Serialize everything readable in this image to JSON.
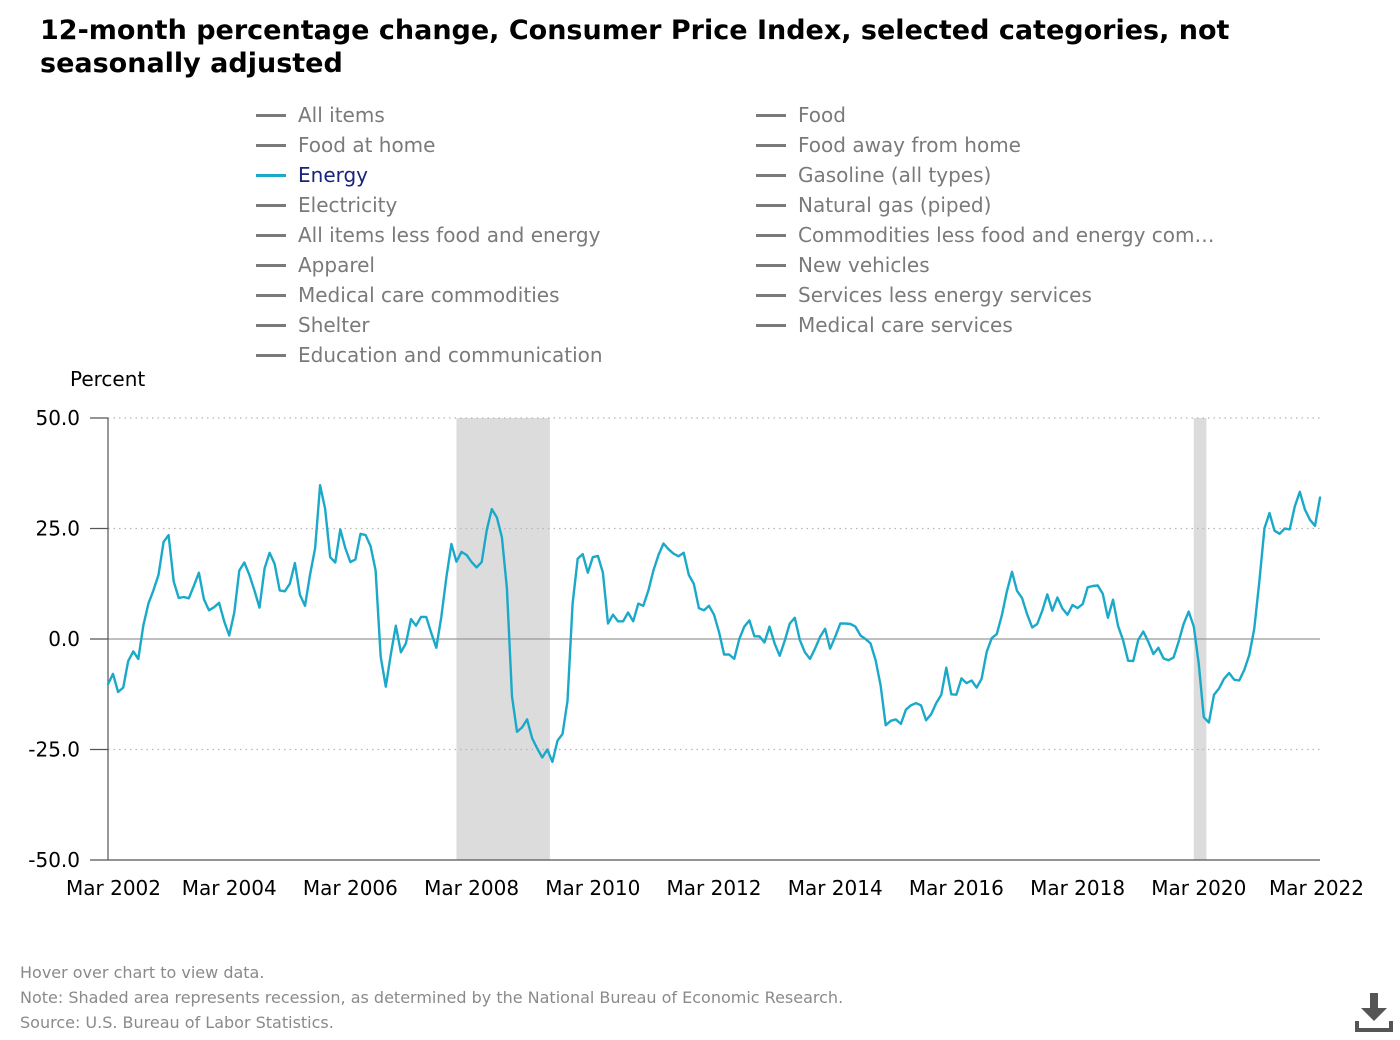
{
  "title": "12-month percentage change, Consumer Price Index, selected categories, not seasonally adjusted",
  "legend": [
    {
      "label": "All items",
      "active": false
    },
    {
      "label": "Food",
      "active": false
    },
    {
      "label": "Food at home",
      "active": false
    },
    {
      "label": "Food away from home",
      "active": false
    },
    {
      "label": "Energy",
      "active": true
    },
    {
      "label": "Gasoline (all types)",
      "active": false
    },
    {
      "label": "Electricity",
      "active": false
    },
    {
      "label": "Natural gas (piped)",
      "active": false
    },
    {
      "label": "All items less food and energy",
      "active": false
    },
    {
      "label": "Commodities less food and energy com…",
      "active": false
    },
    {
      "label": "Apparel",
      "active": false
    },
    {
      "label": "New vehicles",
      "active": false
    },
    {
      "label": "Medical care commodities",
      "active": false
    },
    {
      "label": "Services less energy services",
      "active": false
    },
    {
      "label": "Shelter",
      "active": false
    },
    {
      "label": "Medical care services",
      "active": false
    },
    {
      "label": "Education and communication",
      "active": false
    }
  ],
  "notes": {
    "hover": "Hover over chart to view data.",
    "note": "Note: Shaded area represents recession, as determined by the National Bureau of Economic Research.",
    "source": "Source: U.S. Bureau of Labor Statistics."
  },
  "colors": {
    "energy": "#1ba9c9",
    "recession": "#dcdcdc",
    "inactive": "#7a7a7a"
  },
  "icons": {
    "download": "download-icon"
  },
  "chart_data": {
    "type": "line",
    "ylabel": "Percent",
    "ylim": [
      -50,
      50
    ],
    "yticks": [
      "50.0",
      "25.0",
      "0.0",
      "-25.0",
      "-50.0"
    ],
    "ytick_values": [
      50,
      25,
      0,
      -25,
      -50
    ],
    "xlim": [
      "2002-03",
      "2022-03"
    ],
    "xticks": [
      "Mar 2002",
      "Mar 2004",
      "Mar 2006",
      "Mar 2008",
      "Mar 2010",
      "Mar 2012",
      "Mar 2014",
      "Mar 2016",
      "Mar 2018",
      "Mar 2020",
      "Mar 2022"
    ],
    "grid": "horizontal dotted",
    "recessions": [
      {
        "start": "2007-12",
        "end": "2009-06"
      },
      {
        "start": "2020-02",
        "end": "2020-04"
      }
    ],
    "series": [
      {
        "name": "Energy",
        "anchors": [
          [
            "2002-03",
            -10.2
          ],
          [
            "2002-04",
            -7.9
          ],
          [
            "2002-05",
            -12
          ],
          [
            "2002-06",
            -11
          ],
          [
            "2002-07",
            -5
          ],
          [
            "2002-08",
            -2.8
          ],
          [
            "2002-09",
            -4.5
          ],
          [
            "2002-10",
            3
          ],
          [
            "2002-11",
            8
          ],
          [
            "2002-12",
            11
          ],
          [
            "2003-01",
            14.5
          ],
          [
            "2003-02",
            22
          ],
          [
            "2003-03",
            23.5
          ],
          [
            "2003-04",
            13
          ],
          [
            "2003-05",
            9.3
          ],
          [
            "2003-06",
            9.5
          ],
          [
            "2003-07",
            9.2
          ],
          [
            "2003-08",
            12
          ],
          [
            "2003-09",
            15
          ],
          [
            "2003-10",
            9
          ],
          [
            "2003-11",
            6.5
          ],
          [
            "2003-12",
            7.2
          ],
          [
            "2004-01",
            8.2
          ],
          [
            "2004-02",
            4
          ],
          [
            "2004-03",
            0.8
          ],
          [
            "2004-04",
            6
          ],
          [
            "2004-05",
            15.5
          ],
          [
            "2004-06",
            17.3
          ],
          [
            "2004-07",
            14.5
          ],
          [
            "2004-08",
            11
          ],
          [
            "2004-09",
            7.1
          ],
          [
            "2004-10",
            16
          ],
          [
            "2004-11",
            19.5
          ],
          [
            "2004-12",
            17
          ],
          [
            "2005-01",
            11
          ],
          [
            "2005-02",
            10.8
          ],
          [
            "2005-03",
            12.5
          ],
          [
            "2005-04",
            17.2
          ],
          [
            "2005-05",
            10
          ],
          [
            "2005-06",
            7.5
          ],
          [
            "2005-07",
            14.5
          ],
          [
            "2005-08",
            20.5
          ],
          [
            "2005-09",
            34.8
          ],
          [
            "2005-10",
            29.5
          ],
          [
            "2005-11",
            18.5
          ],
          [
            "2005-12",
            17.3
          ],
          [
            "2006-01",
            24.8
          ],
          [
            "2006-02",
            20.5
          ],
          [
            "2006-03",
            17.4
          ],
          [
            "2006-04",
            18
          ],
          [
            "2006-05",
            23.8
          ],
          [
            "2006-06",
            23.5
          ],
          [
            "2006-07",
            21
          ],
          [
            "2006-08",
            15.5
          ],
          [
            "2006-09",
            -4
          ],
          [
            "2006-10",
            -10.8
          ],
          [
            "2006-11",
            -3.5
          ],
          [
            "2006-12",
            3
          ],
          [
            "2007-01",
            -3
          ],
          [
            "2007-02",
            -1
          ],
          [
            "2007-03",
            4.5
          ],
          [
            "2007-04",
            3
          ],
          [
            "2007-05",
            5
          ],
          [
            "2007-06",
            5
          ],
          [
            "2007-07",
            1.4
          ],
          [
            "2007-08",
            -2
          ],
          [
            "2007-09",
            5
          ],
          [
            "2007-10",
            14
          ],
          [
            "2007-11",
            21.5
          ],
          [
            "2007-12",
            17.5
          ],
          [
            "2008-01",
            19.7
          ],
          [
            "2008-02",
            19
          ],
          [
            "2008-03",
            17.4
          ],
          [
            "2008-04",
            16.2
          ],
          [
            "2008-05",
            17.4
          ],
          [
            "2008-06",
            24.7
          ],
          [
            "2008-07",
            29.4
          ],
          [
            "2008-08",
            27.5
          ],
          [
            "2008-09",
            23
          ],
          [
            "2008-10",
            11.5
          ],
          [
            "2008-11",
            -13
          ],
          [
            "2008-12",
            -21
          ],
          [
            "2009-01",
            -20
          ],
          [
            "2009-02",
            -18.2
          ],
          [
            "2009-03",
            -22.5
          ],
          [
            "2009-04",
            -24.8
          ],
          [
            "2009-05",
            -26.8
          ],
          [
            "2009-06",
            -25
          ],
          [
            "2009-07",
            -27.8
          ],
          [
            "2009-08",
            -23
          ],
          [
            "2009-09",
            -21.5
          ],
          [
            "2009-10",
            -14
          ],
          [
            "2009-11",
            8
          ],
          [
            "2009-12",
            18.2
          ],
          [
            "2010-01",
            19.2
          ],
          [
            "2010-02",
            15
          ],
          [
            "2010-03",
            18.5
          ],
          [
            "2010-04",
            18.8
          ],
          [
            "2010-05",
            15
          ],
          [
            "2010-06",
            3.5
          ],
          [
            "2010-07",
            5.5
          ],
          [
            "2010-08",
            4
          ],
          [
            "2010-09",
            4
          ],
          [
            "2010-10",
            6
          ],
          [
            "2010-11",
            4
          ],
          [
            "2010-12",
            8
          ],
          [
            "2011-01",
            7.5
          ],
          [
            "2011-02",
            11
          ],
          [
            "2011-03",
            15.5
          ],
          [
            "2011-04",
            19
          ],
          [
            "2011-05",
            21.6
          ],
          [
            "2011-06",
            20.3
          ],
          [
            "2011-07",
            19.3
          ],
          [
            "2011-08",
            18.7
          ],
          [
            "2011-09",
            19.5
          ],
          [
            "2011-10",
            14.5
          ],
          [
            "2011-11",
            12.5
          ],
          [
            "2011-12",
            7
          ],
          [
            "2012-01",
            6.5
          ],
          [
            "2012-02",
            7.5
          ],
          [
            "2012-03",
            5.5
          ],
          [
            "2012-04",
            1.6
          ],
          [
            "2012-05",
            -3.5
          ],
          [
            "2012-06",
            -3.5
          ],
          [
            "2012-07",
            -4.5
          ],
          [
            "2012-08",
            0
          ],
          [
            "2012-09",
            2.8
          ],
          [
            "2012-10",
            4.2
          ],
          [
            "2012-11",
            0.6
          ],
          [
            "2012-12",
            0.6
          ],
          [
            "2013-01",
            -0.8
          ],
          [
            "2013-02",
            2.8
          ],
          [
            "2013-03",
            -1
          ],
          [
            "2013-04",
            -3.8
          ],
          [
            "2013-05",
            -0.4
          ],
          [
            "2013-06",
            3.5
          ],
          [
            "2013-07",
            4.8
          ],
          [
            "2013-08",
            -0.2
          ],
          [
            "2013-09",
            -3
          ],
          [
            "2013-10",
            -4.5
          ],
          [
            "2013-11",
            -2.2
          ],
          [
            "2013-12",
            0.5
          ],
          [
            "2014-01",
            2.3
          ],
          [
            "2014-02",
            -2.2
          ],
          [
            "2014-03",
            0.5
          ],
          [
            "2014-04",
            3.5
          ],
          [
            "2014-05",
            3.5
          ],
          [
            "2014-06",
            3.4
          ],
          [
            "2014-07",
            2.8
          ],
          [
            "2014-08",
            0.8
          ],
          [
            "2014-09",
            0
          ],
          [
            "2014-10",
            -1
          ],
          [
            "2014-11",
            -4.8
          ],
          [
            "2014-12",
            -10.5
          ],
          [
            "2015-01",
            -19.5
          ],
          [
            "2015-02",
            -18.5
          ],
          [
            "2015-03",
            -18.2
          ],
          [
            "2015-04",
            -19.2
          ],
          [
            "2015-05",
            -16
          ],
          [
            "2015-06",
            -15
          ],
          [
            "2015-07",
            -14.5
          ],
          [
            "2015-08",
            -15
          ],
          [
            "2015-09",
            -18.4
          ],
          [
            "2015-10",
            -17
          ],
          [
            "2015-11",
            -14.5
          ],
          [
            "2015-12",
            -12.6
          ],
          [
            "2016-01",
            -6.5
          ],
          [
            "2016-02",
            -12.5
          ],
          [
            "2016-03",
            -12.6
          ],
          [
            "2016-04",
            -8.9
          ],
          [
            "2016-05",
            -10
          ],
          [
            "2016-06",
            -9.4
          ],
          [
            "2016-07",
            -11
          ],
          [
            "2016-08",
            -9
          ],
          [
            "2016-09",
            -2.9
          ],
          [
            "2016-10",
            0.2
          ],
          [
            "2016-11",
            1.1
          ],
          [
            "2016-12",
            5.4
          ],
          [
            "2017-01",
            10.8
          ],
          [
            "2017-02",
            15.2
          ],
          [
            "2017-03",
            10.9
          ],
          [
            "2017-04",
            9.3
          ],
          [
            "2017-05",
            5.6
          ],
          [
            "2017-06",
            2.6
          ],
          [
            "2017-07",
            3.4
          ],
          [
            "2017-08",
            6.4
          ],
          [
            "2017-09",
            10.1
          ],
          [
            "2017-10",
            6.4
          ],
          [
            "2017-11",
            9.4
          ],
          [
            "2017-12",
            6.9
          ],
          [
            "2018-01",
            5.5
          ],
          [
            "2018-02",
            7.7
          ],
          [
            "2018-03",
            7
          ],
          [
            "2018-04",
            7.9
          ],
          [
            "2018-05",
            11.7
          ],
          [
            "2018-06",
            12
          ],
          [
            "2018-07",
            12.1
          ],
          [
            "2018-08",
            10.2
          ],
          [
            "2018-09",
            4.8
          ],
          [
            "2018-10",
            8.9
          ],
          [
            "2018-11",
            3
          ],
          [
            "2018-12",
            -0.3
          ],
          [
            "2019-01",
            -4.9
          ],
          [
            "2019-02",
            -5
          ],
          [
            "2019-03",
            -0.2
          ],
          [
            "2019-04",
            1.7
          ],
          [
            "2019-05",
            -0.6
          ],
          [
            "2019-06",
            -3.4
          ],
          [
            "2019-07",
            -2
          ],
          [
            "2019-08",
            -4.4
          ],
          [
            "2019-09",
            -4.8
          ],
          [
            "2019-10",
            -4.2
          ],
          [
            "2019-11",
            -0.6
          ],
          [
            "2019-12",
            3.4
          ],
          [
            "2020-01",
            6.2
          ],
          [
            "2020-02",
            2.8
          ],
          [
            "2020-03",
            -5.7
          ],
          [
            "2020-04",
            -17.7
          ],
          [
            "2020-05",
            -18.9
          ],
          [
            "2020-06",
            -12.6
          ],
          [
            "2020-07",
            -11.2
          ],
          [
            "2020-08",
            -9
          ],
          [
            "2020-09",
            -7.7
          ],
          [
            "2020-10",
            -9.2
          ],
          [
            "2020-11",
            -9.4
          ],
          [
            "2020-12",
            -7
          ],
          [
            "2021-01",
            -3.6
          ],
          [
            "2021-02",
            2.4
          ],
          [
            "2021-03",
            13.2
          ],
          [
            "2021-04",
            25.1
          ],
          [
            "2021-05",
            28.5
          ],
          [
            "2021-06",
            24.5
          ],
          [
            "2021-07",
            23.8
          ],
          [
            "2021-08",
            25
          ],
          [
            "2021-09",
            24.8
          ],
          [
            "2021-10",
            30
          ],
          [
            "2021-11",
            33.3
          ],
          [
            "2021-12",
            29.3
          ],
          [
            "2022-01",
            27
          ],
          [
            "2022-02",
            25.6
          ],
          [
            "2022-03",
            32
          ]
        ]
      }
    ]
  }
}
